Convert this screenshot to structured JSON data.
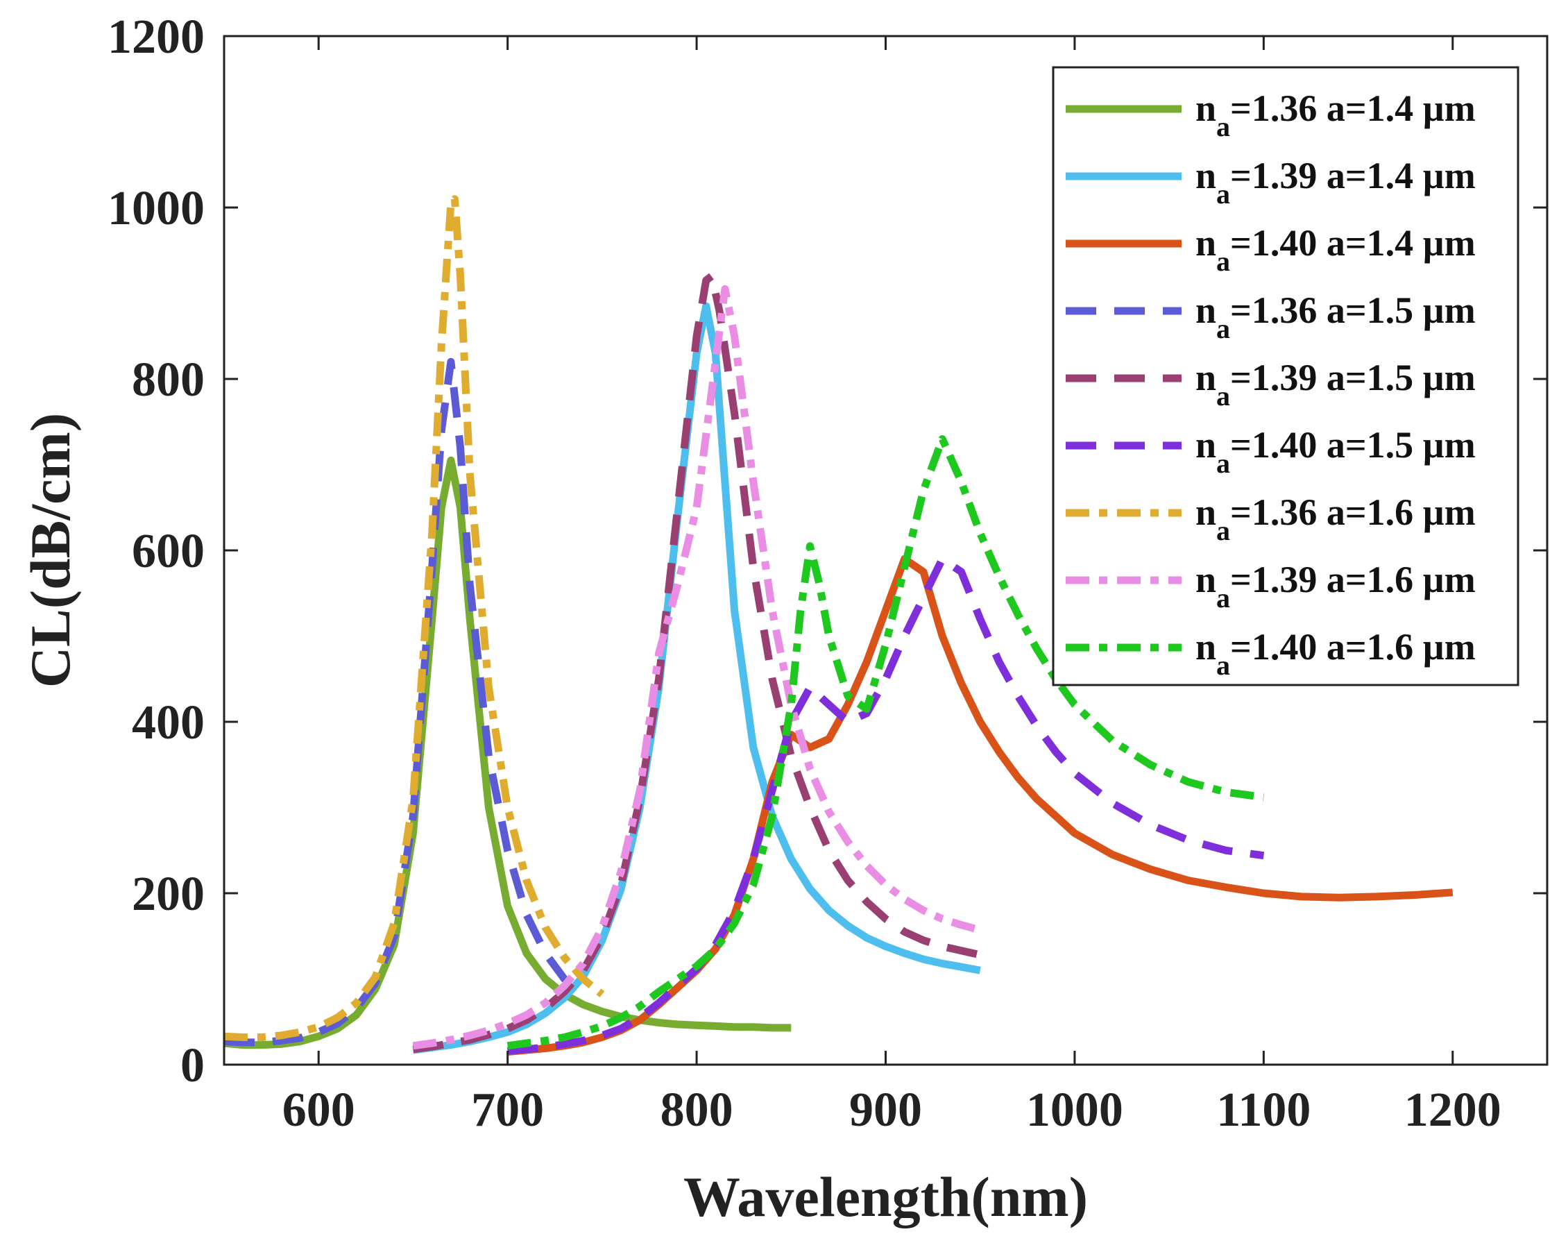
{
  "chart_data": {
    "type": "line",
    "title": "",
    "xlabel": "Wavelength(nm)",
    "ylabel": "CL(dB/cm)",
    "xlim": [
      550,
      1250
    ],
    "ylim": [
      0,
      1200
    ],
    "xticks": [
      600,
      700,
      800,
      900,
      1000,
      1100,
      1200
    ],
    "yticks": [
      0,
      200,
      400,
      600,
      800,
      1000,
      1200
    ],
    "xtick_labels": [
      "600",
      "700",
      "800",
      "900",
      "1000",
      "1100",
      "1200"
    ],
    "ytick_labels": [
      "0",
      "200",
      "400",
      "600",
      "800",
      "1000",
      "1200"
    ],
    "grid": false,
    "legend_position": "top-right",
    "series": [
      {
        "name": "n_a=1.36 a=1.4 µm",
        "n_label": "n",
        "sub": "a",
        "rest": "=1.36 a=1.4 µm",
        "color": "#77ac30",
        "dash": "solid",
        "x": [
          550,
          560,
          570,
          580,
          590,
          600,
          610,
          620,
          630,
          640,
          650,
          660,
          665,
          670,
          675,
          680,
          690,
          700,
          710,
          720,
          730,
          740,
          750,
          760,
          770,
          780,
          790,
          800,
          810,
          820,
          830,
          840,
          850
        ],
        "y": [
          25,
          23,
          23,
          24,
          27,
          33,
          42,
          58,
          88,
          140,
          270,
          520,
          650,
          705,
          650,
          520,
          300,
          185,
          130,
          100,
          82,
          70,
          62,
          56,
          52,
          49,
          47,
          46,
          45,
          44,
          44,
          43,
          43
        ]
      },
      {
        "name": "n_a=1.39 a=1.4 µm",
        "n_label": "n",
        "sub": "a",
        "rest": "=1.39 a=1.4 µm",
        "color": "#4dbeee",
        "dash": "solid",
        "x": [
          650,
          660,
          670,
          680,
          690,
          700,
          710,
          720,
          730,
          740,
          750,
          760,
          770,
          780,
          790,
          800,
          805,
          810,
          815,
          820,
          830,
          840,
          850,
          860,
          870,
          880,
          890,
          900,
          910,
          920,
          930,
          940,
          950
        ],
        "y": [
          17,
          20,
          23,
          27,
          32,
          38,
          47,
          60,
          78,
          103,
          145,
          205,
          300,
          440,
          640,
          830,
          885,
          830,
          680,
          530,
          370,
          290,
          240,
          205,
          180,
          162,
          148,
          138,
          130,
          123,
          118,
          114,
          110
        ]
      },
      {
        "name": "n_a=1.40 a=1.4 µm",
        "n_label": "n",
        "sub": "a",
        "rest": "=1.40 a=1.4 µm",
        "color": "#d95319",
        "dash": "solid",
        "x": [
          700,
          710,
          720,
          730,
          740,
          750,
          760,
          770,
          780,
          790,
          800,
          810,
          820,
          830,
          840,
          850,
          860,
          870,
          880,
          890,
          900,
          910,
          920,
          930,
          940,
          950,
          960,
          970,
          980,
          990,
          1000,
          1020,
          1040,
          1060,
          1080,
          1100,
          1120,
          1140,
          1160,
          1180,
          1200
        ],
        "y": [
          15,
          17,
          19,
          22,
          26,
          32,
          40,
          52,
          70,
          90,
          110,
          135,
          175,
          240,
          330,
          385,
          370,
          380,
          420,
          470,
          530,
          590,
          575,
          500,
          445,
          400,
          365,
          335,
          310,
          290,
          270,
          245,
          228,
          215,
          207,
          200,
          196,
          195,
          196,
          198,
          201
        ]
      },
      {
        "name": "n_a=1.36 a=1.5 µm",
        "n_label": "n",
        "sub": "a",
        "rest": "=1.36 a=1.5 µm",
        "color": "#5b5bd6",
        "dash": "dash",
        "x": [
          550,
          560,
          570,
          580,
          590,
          600,
          610,
          620,
          630,
          640,
          650,
          660,
          665,
          670,
          675,
          680,
          690,
          700,
          710,
          720,
          730,
          740
        ],
        "y": [
          27,
          26,
          26,
          28,
          31,
          38,
          48,
          66,
          95,
          150,
          290,
          580,
          740,
          820,
          720,
          560,
          360,
          250,
          175,
          130,
          100,
          85
        ]
      },
      {
        "name": "n_a=1.39 a=1.5 µm",
        "n_label": "n",
        "sub": "a",
        "rest": "=1.39 a=1.5 µm",
        "color": "#993f72",
        "dash": "dash",
        "x": [
          650,
          660,
          670,
          680,
          690,
          700,
          710,
          720,
          730,
          740,
          750,
          760,
          770,
          780,
          790,
          800,
          805,
          808,
          812,
          820,
          830,
          840,
          850,
          860,
          870,
          880,
          890,
          900,
          910,
          920,
          930,
          940,
          950
        ],
        "y": [
          18,
          21,
          25,
          29,
          35,
          42,
          52,
          66,
          85,
          110,
          150,
          210,
          310,
          450,
          650,
          850,
          915,
          920,
          880,
          760,
          580,
          450,
          360,
          300,
          250,
          215,
          190,
          170,
          155,
          145,
          138,
          133,
          128
        ]
      },
      {
        "name": "n_a=1.40 a=1.5 µm",
        "n_label": "n",
        "sub": "a",
        "rest": "=1.40 a=1.5 µm",
        "color": "#7e2fdb",
        "dash": "dash",
        "x": [
          700,
          710,
          720,
          730,
          740,
          750,
          760,
          770,
          780,
          790,
          800,
          810,
          820,
          830,
          840,
          850,
          860,
          870,
          880,
          890,
          900,
          910,
          920,
          930,
          940,
          950,
          960,
          970,
          980,
          990,
          1000,
          1020,
          1040,
          1060,
          1080,
          1100
        ],
        "y": [
          16,
          18,
          20,
          24,
          28,
          34,
          42,
          55,
          72,
          92,
          112,
          140,
          180,
          240,
          320,
          400,
          440,
          420,
          400,
          410,
          450,
          500,
          545,
          590,
          575,
          520,
          470,
          430,
          395,
          365,
          340,
          305,
          280,
          262,
          250,
          244
        ]
      },
      {
        "name": "n_a=1.36 a=1.6 µm",
        "n_label": "n",
        "sub": "a",
        "rest": "=1.36 a=1.6 µm",
        "color": "#e0ac2f",
        "dash": "dashdot",
        "x": [
          550,
          560,
          570,
          580,
          590,
          600,
          610,
          620,
          630,
          640,
          650,
          660,
          665,
          670,
          672,
          675,
          680,
          690,
          700,
          710,
          720,
          730,
          740,
          750
        ],
        "y": [
          33,
          32,
          32,
          34,
          38,
          44,
          55,
          72,
          102,
          165,
          310,
          620,
          840,
          1005,
          1010,
          920,
          690,
          440,
          300,
          215,
          160,
          125,
          100,
          82
        ]
      },
      {
        "name": "n_a=1.39 a=1.6 µm",
        "n_label": "n",
        "sub": "a",
        "rest": "=1.39 a=1.6 µm",
        "color": "#ea8ee5",
        "dash": "dashdot",
        "x": [
          650,
          660,
          670,
          680,
          690,
          700,
          710,
          720,
          730,
          740,
          750,
          760,
          770,
          780,
          790,
          800,
          810,
          815,
          820,
          830,
          840,
          850,
          860,
          870,
          880,
          890,
          900,
          910,
          920,
          930,
          940,
          950
        ],
        "y": [
          22,
          25,
          29,
          34,
          40,
          48,
          58,
          72,
          92,
          118,
          160,
          225,
          320,
          480,
          560,
          650,
          820,
          905,
          850,
          680,
          530,
          420,
          345,
          295,
          260,
          232,
          210,
          193,
          180,
          170,
          163,
          157
        ]
      },
      {
        "name": "n_a=1.40 a=1.6 µm",
        "n_label": "n",
        "sub": "a",
        "rest": "=1.40 a=1.6 µm",
        "color": "#1ec81e",
        "dash": "dashdot",
        "x": [
          700,
          710,
          720,
          730,
          740,
          750,
          760,
          770,
          780,
          790,
          800,
          810,
          820,
          830,
          840,
          850,
          855,
          860,
          865,
          870,
          880,
          890,
          900,
          910,
          920,
          930,
          940,
          950,
          960,
          970,
          980,
          990,
          1000,
          1020,
          1040,
          1060,
          1080,
          1100
        ],
        "y": [
          22,
          25,
          28,
          32,
          38,
          45,
          55,
          68,
          85,
          100,
          115,
          135,
          165,
          210,
          290,
          420,
          530,
          605,
          560,
          500,
          430,
          415,
          490,
          580,
          670,
          730,
          680,
          620,
          570,
          525,
          485,
          450,
          420,
          378,
          350,
          330,
          318,
          312
        ]
      }
    ]
  }
}
